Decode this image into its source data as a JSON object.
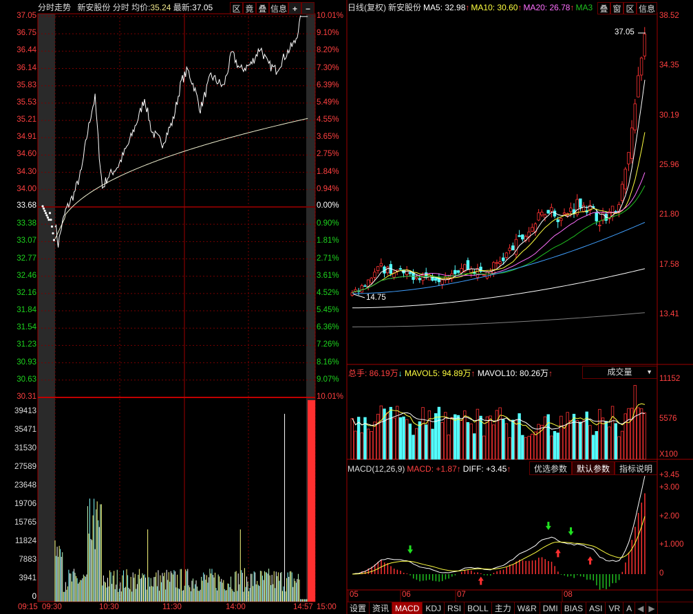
{
  "intraday": {
    "title": "分时走势",
    "stock": "新安股份",
    "mode": "分时",
    "avg_label": "均价:",
    "avg_value": "35.24",
    "last_label": "最新:",
    "last_value": "37.05",
    "buttons": [
      "区",
      "竟",
      "叠",
      "信息",
      "+",
      "−"
    ],
    "price_axis_up": [
      "37.05",
      "36.75",
      "36.44",
      "36.14",
      "35.83",
      "35.53",
      "35.21",
      "34.91",
      "34.60",
      "34.30",
      "34.00"
    ],
    "price_axis_base": "33.68",
    "price_axis_down": [
      "33.38",
      "33.07",
      "32.77",
      "32.46",
      "32.16",
      "31.84",
      "31.54",
      "31.23",
      "30.93",
      "30.63",
      "30.31"
    ],
    "pct_axis_up": [
      "10.01%",
      "9.10%",
      "8.20%",
      "7.30%",
      "6.39%",
      "5.49%",
      "4.55%",
      "3.65%",
      "2.75%",
      "1.84%",
      "0.94%"
    ],
    "pct_axis_base": "0.00%",
    "pct_axis_down": [
      "0.90%",
      "1.81%",
      "2.71%",
      "3.61%",
      "4.52%",
      "5.45%",
      "6.36%",
      "7.26%",
      "8.16%",
      "9.07%",
      "10.01%"
    ],
    "volume_axis": [
      "39413",
      "35471",
      "31530",
      "27589",
      "23648",
      "19706",
      "15765",
      "11824",
      "7883",
      "3941",
      "0"
    ],
    "time_axis": [
      "09:15",
      "09:30",
      "10:30",
      "11:30",
      "14:00",
      "14:57",
      "15:00"
    ]
  },
  "daily": {
    "title": "日线(复权)",
    "stock": "新安股份",
    "ma": [
      {
        "label": "MA5: 32.98",
        "arrow": "↑",
        "color": "#ffffff"
      },
      {
        "label": "MA10: 30.60",
        "arrow": "↑",
        "color": "#ffff40"
      },
      {
        "label": "MA20: 26.78",
        "arrow": "↑",
        "color": "#ff70ff"
      },
      {
        "label": "MA3",
        "arrow": "",
        "color": "#20c020"
      }
    ],
    "buttons": [
      "叠",
      "窗",
      "区",
      "信息"
    ],
    "price_axis": [
      "38.52",
      "34.35",
      "30.19",
      "25.96",
      "21.80",
      "17.58",
      "13.41"
    ],
    "high_mark": "37.05",
    "low_mark": "14.75",
    "volume": {
      "total_label": "总手: 86.19万",
      "total_arrow": "↓",
      "mavol5": "MAVOL5: 94.89万",
      "mavol5_arrow": "↑",
      "mavol10": "MAVOL10: 80.26万",
      "mavol10_arrow": "↑",
      "selector": "成交量",
      "axis": [
        "11152",
        "5576"
      ],
      "unit": "X100"
    },
    "macd": {
      "name": "MACD(12,26,9)",
      "macd_label": "MACD: +1.87",
      "macd_arrow": "↑",
      "diff_label": "DIFF: +3.45",
      "diff_arrow": "↑",
      "axis": [
        "+3.45",
        "+3.00",
        "+2.00",
        "+1.000",
        "0"
      ],
      "param_buttons": [
        "优选参数",
        "默认参数",
        "指标说明"
      ],
      "active_param": "默认参数"
    },
    "months": [
      "05",
      "06",
      "07",
      "08"
    ]
  },
  "tabs": [
    "设置",
    "资讯",
    "MACD",
    "KDJ",
    "RSI",
    "BOLL",
    "主力",
    "W&R",
    "DMI",
    "BIAS",
    "ASI",
    "VR",
    "A"
  ],
  "active_tab": "MACD",
  "colors": {
    "up": "#ff3232",
    "down": "#54ffff",
    "grid": "#7a0000",
    "background": "#000000"
  }
}
